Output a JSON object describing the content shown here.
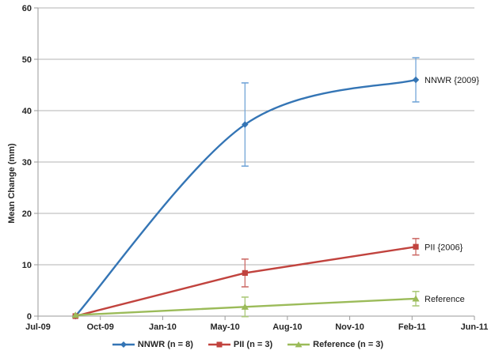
{
  "chart_data": {
    "type": "line",
    "title": "",
    "xlabel": "",
    "ylabel": "Mean Change (mm)",
    "ylim": [
      0,
      60
    ],
    "yticks": [
      0,
      10,
      20,
      30,
      40,
      50,
      60
    ],
    "xticks": [
      "Jul-09",
      "Oct-09",
      "Jan-10",
      "May-10",
      "Aug-10",
      "Nov-10",
      "Feb-11",
      "Jun-11"
    ],
    "x_unit_note": "x values are in tick units (0 = Jul-09 tick, 7 = Jun-11 tick, equally spaced)",
    "grid": "horizontal-only",
    "legend_position": "bottom-center",
    "axis_color": "#9a9a9a",
    "gridline_color": "#b3b3b3",
    "text_color": "#262626",
    "series": [
      {
        "name": "NNWR (n = 8)",
        "end_label": "NNWR {2009}",
        "color": "#3475b5",
        "error_color": "#74a6d8",
        "marker": "diamond",
        "smooth": true,
        "points": [
          {
            "x": 0.6,
            "y": 0.0,
            "err": 0.0
          },
          {
            "x": 3.32,
            "y": 37.3,
            "err": 8.1
          },
          {
            "x": 6.06,
            "y": 46.0,
            "err": 4.3
          }
        ]
      },
      {
        "name": "PII (n = 3)",
        "end_label": "PII {2006}",
        "color": "#c1433e",
        "error_color": "#cd6d69",
        "marker": "square",
        "smooth": false,
        "points": [
          {
            "x": 0.6,
            "y": 0.0,
            "err": 0.0
          },
          {
            "x": 3.32,
            "y": 8.4,
            "err": 2.7
          },
          {
            "x": 6.06,
            "y": 13.5,
            "err": 1.6
          }
        ]
      },
      {
        "name": "Reference (n = 3)",
        "end_label": "Reference",
        "color": "#9bbb59",
        "error_color": "#abc979",
        "marker": "triangle",
        "smooth": false,
        "points": [
          {
            "x": 0.6,
            "y": 0.2,
            "err": 0.0
          },
          {
            "x": 3.32,
            "y": 1.8,
            "err": 1.9
          },
          {
            "x": 6.06,
            "y": 3.4,
            "err": 1.4
          }
        ]
      }
    ]
  }
}
